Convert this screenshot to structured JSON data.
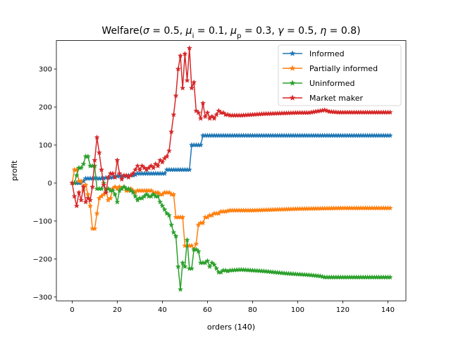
{
  "chart_data": {
    "type": "line",
    "title": "Welfare(σ = 0.5, μ_i = 0.1, μ_p = 0.3, γ = 0.5, η = 0.8)",
    "title_parts": [
      {
        "t": "Welfare("
      },
      {
        "t": "σ",
        "i": true
      },
      {
        "t": " = 0.5, "
      },
      {
        "t": "μ",
        "i": true
      },
      {
        "t": "i",
        "sub": true
      },
      {
        "t": " = 0.1, "
      },
      {
        "t": "μ",
        "i": true
      },
      {
        "t": "p",
        "sub": true
      },
      {
        "t": " = 0.3, "
      },
      {
        "t": "γ",
        "i": true
      },
      {
        "t": " = 0.5, "
      },
      {
        "t": "η",
        "i": true
      },
      {
        "t": " = 0.8)"
      }
    ],
    "xlabel": "orders (140)",
    "ylabel": "profit",
    "xlim": [
      -7,
      148
    ],
    "ylim": [
      -310,
      375
    ],
    "xticks": [
      0,
      20,
      40,
      60,
      80,
      100,
      120,
      140
    ],
    "yticks": [
      -300,
      -200,
      -100,
      0,
      100,
      200,
      300
    ],
    "grid": false,
    "legend_position": "top-right",
    "series": [
      {
        "name": "Informed",
        "color": "#1f77b4",
        "marker": "star",
        "points": [
          [
            0,
            0
          ],
          [
            1,
            0
          ],
          [
            2,
            0
          ],
          [
            3,
            0
          ],
          [
            4,
            0
          ],
          [
            5,
            5
          ],
          [
            6,
            12
          ],
          [
            7,
            12
          ],
          [
            8,
            12
          ],
          [
            9,
            12
          ],
          [
            10,
            12
          ],
          [
            11,
            12
          ],
          [
            12,
            12
          ],
          [
            13,
            12
          ],
          [
            14,
            12
          ],
          [
            15,
            14
          ],
          [
            16,
            14
          ],
          [
            17,
            14
          ],
          [
            18,
            15
          ],
          [
            19,
            15
          ],
          [
            20,
            18
          ],
          [
            21,
            18
          ],
          [
            22,
            18
          ],
          [
            23,
            18
          ],
          [
            24,
            18
          ],
          [
            25,
            20
          ],
          [
            26,
            20
          ],
          [
            27,
            20
          ],
          [
            28,
            22
          ],
          [
            29,
            25
          ],
          [
            30,
            25
          ],
          [
            31,
            25
          ],
          [
            32,
            25
          ],
          [
            33,
            25
          ],
          [
            34,
            25
          ],
          [
            35,
            25
          ],
          [
            36,
            25
          ],
          [
            37,
            25
          ],
          [
            38,
            25
          ],
          [
            39,
            25
          ],
          [
            40,
            25
          ],
          [
            41,
            25
          ],
          [
            42,
            35
          ],
          [
            43,
            35
          ],
          [
            44,
            35
          ],
          [
            45,
            35
          ],
          [
            46,
            35
          ],
          [
            47,
            35
          ],
          [
            48,
            35
          ],
          [
            49,
            35
          ],
          [
            50,
            35
          ],
          [
            51,
            35
          ],
          [
            52,
            35
          ],
          [
            53,
            100
          ],
          [
            54,
            100
          ],
          [
            55,
            100
          ],
          [
            56,
            100
          ],
          [
            57,
            100
          ],
          [
            58,
            125
          ],
          [
            141,
            125
          ]
        ]
      },
      {
        "name": "Partially informed",
        "color": "#ff7f0e",
        "marker": "star",
        "points": [
          [
            0,
            0
          ],
          [
            1,
            35
          ],
          [
            2,
            35
          ],
          [
            3,
            5
          ],
          [
            4,
            5
          ],
          [
            5,
            -20
          ],
          [
            6,
            -5
          ],
          [
            7,
            -30
          ],
          [
            8,
            -60
          ],
          [
            9,
            -120
          ],
          [
            10,
            -120
          ],
          [
            11,
            -80
          ],
          [
            12,
            -40
          ],
          [
            13,
            -35
          ],
          [
            14,
            -30
          ],
          [
            15,
            -20
          ],
          [
            16,
            -45
          ],
          [
            17,
            -40
          ],
          [
            18,
            -15
          ],
          [
            19,
            -10
          ],
          [
            20,
            -15
          ],
          [
            21,
            -10
          ],
          [
            22,
            -15
          ],
          [
            23,
            -10
          ],
          [
            24,
            -20
          ],
          [
            25,
            -20
          ],
          [
            26,
            -15
          ],
          [
            27,
            -20
          ],
          [
            28,
            -25
          ],
          [
            29,
            -20
          ],
          [
            30,
            -20
          ],
          [
            31,
            -20
          ],
          [
            32,
            -20
          ],
          [
            33,
            -20
          ],
          [
            34,
            -20
          ],
          [
            35,
            -20
          ],
          [
            36,
            -25
          ],
          [
            37,
            -25
          ],
          [
            38,
            -25
          ],
          [
            39,
            -30
          ],
          [
            40,
            -30
          ],
          [
            41,
            -25
          ],
          [
            42,
            -25
          ],
          [
            43,
            -25
          ],
          [
            44,
            -30
          ],
          [
            45,
            -30
          ],
          [
            46,
            -90
          ],
          [
            47,
            -90
          ],
          [
            48,
            -90
          ],
          [
            49,
            -90
          ],
          [
            50,
            -165
          ],
          [
            51,
            -165
          ],
          [
            52,
            -165
          ],
          [
            53,
            -165
          ],
          [
            54,
            -175
          ],
          [
            55,
            -160
          ],
          [
            56,
            -110
          ],
          [
            57,
            -105
          ],
          [
            58,
            -105
          ],
          [
            59,
            -90
          ],
          [
            60,
            -90
          ],
          [
            61,
            -85
          ],
          [
            62,
            -85
          ],
          [
            63,
            -80
          ],
          [
            64,
            -80
          ],
          [
            65,
            -80
          ],
          [
            66,
            -75
          ],
          [
            67,
            -75
          ],
          [
            68,
            -75
          ],
          [
            70,
            -72
          ],
          [
            80,
            -72
          ],
          [
            90,
            -70
          ],
          [
            100,
            -68
          ],
          [
            110,
            -67
          ],
          [
            120,
            -66
          ],
          [
            130,
            -66
          ],
          [
            141,
            -66
          ]
        ]
      },
      {
        "name": "Uninformed",
        "color": "#2ca02c",
        "marker": "star",
        "points": [
          [
            0,
            0
          ],
          [
            1,
            0
          ],
          [
            2,
            20
          ],
          [
            3,
            40
          ],
          [
            4,
            40
          ],
          [
            5,
            50
          ],
          [
            6,
            70
          ],
          [
            7,
            70
          ],
          [
            8,
            45
          ],
          [
            9,
            45
          ],
          [
            10,
            45
          ],
          [
            11,
            -15
          ],
          [
            12,
            -15
          ],
          [
            13,
            -15
          ],
          [
            14,
            0
          ],
          [
            15,
            -20
          ],
          [
            16,
            -15
          ],
          [
            17,
            -20
          ],
          [
            18,
            -20
          ],
          [
            19,
            -30
          ],
          [
            20,
            -50
          ],
          [
            21,
            -20
          ],
          [
            22,
            -15
          ],
          [
            23,
            -10
          ],
          [
            24,
            -15
          ],
          [
            25,
            -15
          ],
          [
            26,
            -20
          ],
          [
            27,
            -25
          ],
          [
            28,
            -35
          ],
          [
            29,
            -45
          ],
          [
            30,
            -40
          ],
          [
            31,
            -40
          ],
          [
            32,
            -35
          ],
          [
            33,
            -30
          ],
          [
            34,
            -35
          ],
          [
            35,
            -35
          ],
          [
            36,
            -30
          ],
          [
            37,
            -35
          ],
          [
            38,
            -35
          ],
          [
            39,
            -50
          ],
          [
            40,
            -60
          ],
          [
            41,
            -70
          ],
          [
            42,
            -80
          ],
          [
            43,
            -85
          ],
          [
            44,
            -110
          ],
          [
            45,
            -130
          ],
          [
            46,
            -140
          ],
          [
            47,
            -220
          ],
          [
            48,
            -280
          ],
          [
            49,
            -210
          ],
          [
            50,
            -220
          ],
          [
            51,
            -150
          ],
          [
            52,
            -225
          ],
          [
            53,
            -225
          ],
          [
            54,
            -175
          ],
          [
            55,
            -175
          ],
          [
            56,
            -180
          ],
          [
            57,
            -210
          ],
          [
            58,
            -210
          ],
          [
            59,
            -210
          ],
          [
            60,
            -205
          ],
          [
            61,
            -220
          ],
          [
            62,
            -210
          ],
          [
            63,
            -215
          ],
          [
            64,
            -225
          ],
          [
            65,
            -235
          ],
          [
            66,
            -235
          ],
          [
            67,
            -230
          ],
          [
            68,
            -230
          ],
          [
            69,
            -232
          ],
          [
            70,
            -230
          ],
          [
            75,
            -228
          ],
          [
            80,
            -230
          ],
          [
            85,
            -232
          ],
          [
            90,
            -235
          ],
          [
            95,
            -238
          ],
          [
            100,
            -240
          ],
          [
            105,
            -242
          ],
          [
            110,
            -245
          ],
          [
            112,
            -248
          ],
          [
            115,
            -248
          ],
          [
            120,
            -248
          ],
          [
            130,
            -248
          ],
          [
            141,
            -248
          ]
        ]
      },
      {
        "name": "Market maker",
        "color": "#d62728",
        "marker": "star",
        "points": [
          [
            0,
            0
          ],
          [
            1,
            -35
          ],
          [
            2,
            -60
          ],
          [
            3,
            -25
          ],
          [
            4,
            -45
          ],
          [
            5,
            -10
          ],
          [
            6,
            -50
          ],
          [
            7,
            -40
          ],
          [
            8,
            -45
          ],
          [
            9,
            -10
          ],
          [
            10,
            60
          ],
          [
            11,
            120
          ],
          [
            12,
            80
          ],
          [
            13,
            35
          ],
          [
            14,
            -5
          ],
          [
            15,
            -25
          ],
          [
            16,
            15
          ],
          [
            17,
            25
          ],
          [
            18,
            25
          ],
          [
            19,
            15
          ],
          [
            20,
            60
          ],
          [
            21,
            25
          ],
          [
            22,
            10
          ],
          [
            23,
            20
          ],
          [
            24,
            20
          ],
          [
            25,
            15
          ],
          [
            26,
            20
          ],
          [
            27,
            25
          ],
          [
            28,
            35
          ],
          [
            29,
            45
          ],
          [
            30,
            35
          ],
          [
            31,
            45
          ],
          [
            32,
            40
          ],
          [
            33,
            35
          ],
          [
            34,
            40
          ],
          [
            35,
            45
          ],
          [
            36,
            40
          ],
          [
            37,
            50
          ],
          [
            38,
            45
          ],
          [
            39,
            60
          ],
          [
            40,
            55
          ],
          [
            41,
            65
          ],
          [
            42,
            70
          ],
          [
            43,
            85
          ],
          [
            44,
            135
          ],
          [
            45,
            180
          ],
          [
            46,
            230
          ],
          [
            47,
            300
          ],
          [
            48,
            335
          ],
          [
            49,
            250
          ],
          [
            50,
            340
          ],
          [
            51,
            270
          ],
          [
            52,
            355
          ],
          [
            53,
            250
          ],
          [
            54,
            265
          ],
          [
            55,
            190
          ],
          [
            56,
            185
          ],
          [
            57,
            170
          ],
          [
            58,
            210
          ],
          [
            59,
            175
          ],
          [
            60,
            185
          ],
          [
            61,
            170
          ],
          [
            62,
            175
          ],
          [
            63,
            170
          ],
          [
            64,
            180
          ],
          [
            65,
            190
          ],
          [
            66,
            185
          ],
          [
            67,
            185
          ],
          [
            68,
            180
          ],
          [
            69,
            180
          ],
          [
            70,
            178
          ],
          [
            75,
            178
          ],
          [
            80,
            180
          ],
          [
            85,
            182
          ],
          [
            90,
            183
          ],
          [
            95,
            184
          ],
          [
            100,
            185
          ],
          [
            105,
            185
          ],
          [
            108,
            188
          ],
          [
            110,
            190
          ],
          [
            112,
            192
          ],
          [
            114,
            188
          ],
          [
            118,
            186
          ],
          [
            120,
            186
          ],
          [
            130,
            186
          ],
          [
            141,
            186
          ]
        ]
      }
    ]
  }
}
